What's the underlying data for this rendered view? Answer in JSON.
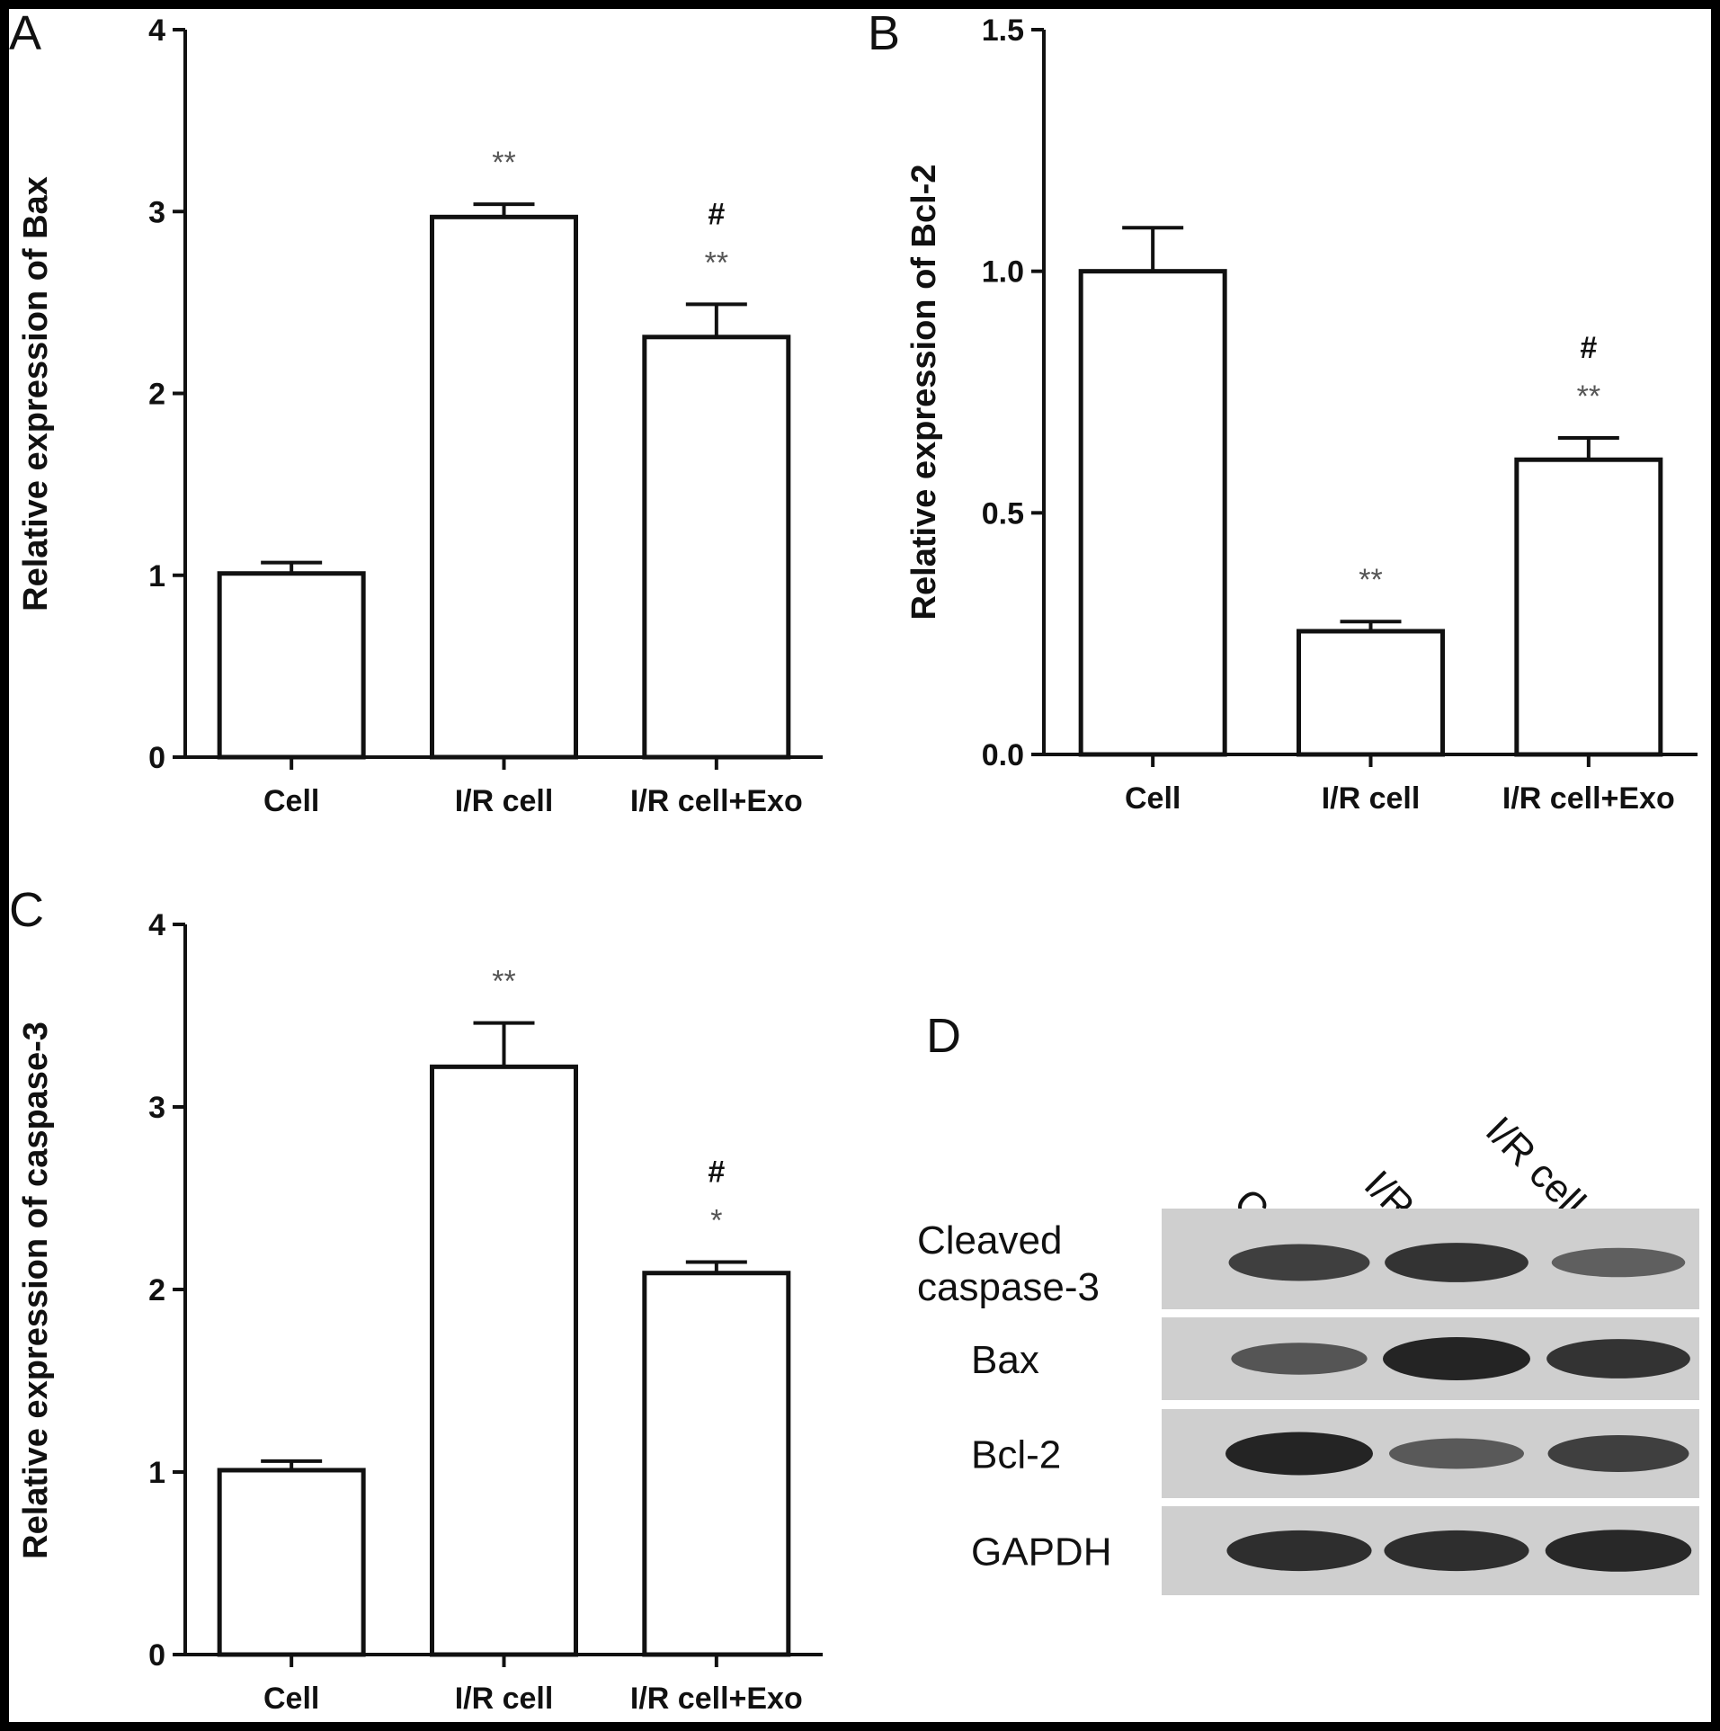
{
  "chart_data": [
    {
      "panel": "A",
      "type": "bar",
      "ylabel": "Relative expression of Bax",
      "categories": [
        "Cell",
        "I/R cell",
        "I/R cell+Exo"
      ],
      "values": [
        1.01,
        2.97,
        2.31
      ],
      "errors": [
        0.06,
        0.07,
        0.18
      ],
      "ylim": [
        0,
        4
      ],
      "yticks": [
        "0",
        "1",
        "2",
        "3",
        "4"
      ],
      "annotations": [
        {
          "category": 1,
          "lines": [
            "**"
          ]
        },
        {
          "category": 2,
          "lines": [
            "#",
            "**"
          ]
        }
      ]
    },
    {
      "panel": "B",
      "type": "bar",
      "ylabel": "Relative expression of Bcl-2",
      "categories": [
        "Cell",
        "I/R cell",
        "I/R cell+Exo"
      ],
      "values": [
        1.0,
        0.255,
        0.61
      ],
      "errors": [
        0.09,
        0.02,
        0.045
      ],
      "ylim": [
        0,
        1.5
      ],
      "yticks": [
        "0.0",
        "0.5",
        "1.0",
        "1.5"
      ],
      "annotations": [
        {
          "category": 1,
          "lines": [
            "**"
          ]
        },
        {
          "category": 2,
          "lines": [
            "#",
            "**"
          ]
        }
      ]
    },
    {
      "panel": "C",
      "type": "bar",
      "ylabel": "Relative expression of caspase-3",
      "categories": [
        "Cell",
        "I/R cell",
        "I/R cell+Exo"
      ],
      "values": [
        1.01,
        3.22,
        2.09
      ],
      "errors": [
        0.05,
        0.24,
        0.06
      ],
      "ylim": [
        0,
        4
      ],
      "yticks": [
        "0",
        "1",
        "2",
        "3",
        "4"
      ],
      "annotations": [
        {
          "category": 1,
          "lines": [
            "**"
          ]
        },
        {
          "category": 2,
          "lines": [
            "#",
            "*"
          ]
        }
      ]
    }
  ],
  "blot": {
    "panel": "D",
    "lanes": [
      "Cell",
      "I/R cell",
      "I/R cell+Exo"
    ],
    "rows": [
      {
        "label_lines": [
          "Cleaved",
          "caspase-3"
        ],
        "intensities": [
          0.75,
          0.85,
          0.45
        ]
      },
      {
        "label_lines": [
          "Bax"
        ],
        "intensities": [
          0.55,
          1.0,
          0.85
        ]
      },
      {
        "label_lines": [
          "Bcl-2"
        ],
        "intensities": [
          1.0,
          0.5,
          0.75
        ]
      },
      {
        "label_lines": [
          "GAPDH"
        ],
        "intensities": [
          0.9,
          0.9,
          0.95
        ]
      }
    ],
    "band_color": "#1a1a1a",
    "membrane_color": "#cfcfcf"
  }
}
